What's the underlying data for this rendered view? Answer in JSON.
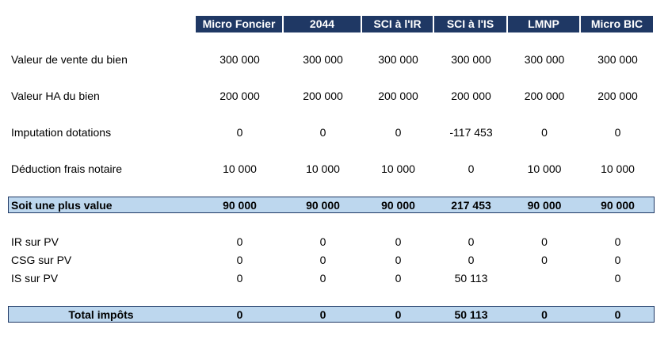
{
  "table": {
    "headers": [
      "Micro Foncier",
      "2044",
      "SCI à l'IR",
      "SCI à l'IS",
      "LMNP",
      "Micro BIC"
    ],
    "rows": [
      {
        "label": "Valeur de vente du bien",
        "cells": [
          "300 000",
          "300 000",
          "300 000",
          "300 000",
          "300 000",
          "300 000"
        ]
      },
      {
        "label": "Valeur HA du bien",
        "cells": [
          "200 000",
          "200 000",
          "200 000",
          "200 000",
          "200 000",
          "200 000"
        ]
      },
      {
        "label": "Imputation dotations",
        "cells": [
          "0",
          "0",
          "0",
          "-117 453",
          "0",
          "0"
        ]
      },
      {
        "label": "Déduction frais notaire",
        "cells": [
          "10 000",
          "10 000",
          "10 000",
          "0",
          "10 000",
          "10 000"
        ]
      },
      {
        "label": "Soit une plus value",
        "cells": [
          "90 000",
          "90 000",
          "90 000",
          "217 453",
          "90 000",
          "90 000"
        ]
      },
      {
        "label": "IR sur PV",
        "cells": [
          "0",
          "0",
          "0",
          "0",
          "0",
          "0"
        ]
      },
      {
        "label": "CSG sur PV",
        "cells": [
          "0",
          "0",
          "0",
          "0",
          "0",
          "0"
        ]
      },
      {
        "label": "IS sur PV",
        "cells": [
          "0",
          "0",
          "0",
          "50 113",
          null,
          "0"
        ]
      },
      {
        "label": "Total impôts",
        "cells": [
          "0",
          "0",
          "0",
          "50 113",
          "0",
          "0"
        ]
      }
    ]
  }
}
